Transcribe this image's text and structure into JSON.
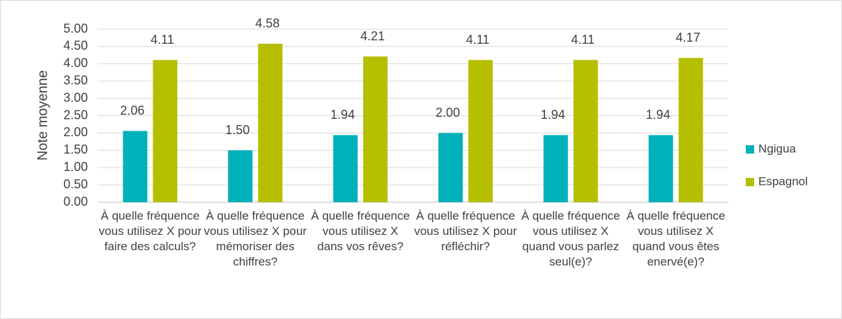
{
  "chart_data": {
    "type": "bar",
    "y_label": "Note moyenne",
    "categories": [
      "À quelle fréquence vous utilisez X pour faire des calculs?",
      "À quelle fréquence vous utilisez X pour mémoriser des chiffres?",
      "À quelle fréquence vous utilisez X dans vos rêves?",
      "À quelle fréquence vous utilisez X pour réfléchir?",
      "À quelle fréquence vous utilisez X quand vous parlez seul(e)?",
      "À quelle fréquence vous utilisez X quand vous êtes enervé(e)?"
    ],
    "series": [
      {
        "name": "Ngigua",
        "color": "#00b1ba",
        "values": [
          2.06,
          1.5,
          1.94,
          2,
          1.94,
          1.94
        ],
        "value_labels": [
          "2.06",
          "1.50",
          "1.94",
          "2.00",
          "1.94",
          "1.94"
        ]
      },
      {
        "name": "Espagnol",
        "color": "#b5bf00",
        "values": [
          4.11,
          4.58,
          4.21,
          4.11,
          4.11,
          4.17
        ],
        "value_labels": [
          "4.11",
          "4.58",
          "4.21",
          "4.11",
          "4.11",
          "4.17"
        ]
      }
    ],
    "ylim": [
      0,
      5
    ],
    "yticks": [
      {
        "value": 0,
        "label": "0.00"
      },
      {
        "value": 0.5,
        "label": "0.50"
      },
      {
        "value": 1,
        "label": "1.00"
      },
      {
        "value": 1.5,
        "label": "1.50"
      },
      {
        "value": 2,
        "label": "2.00"
      },
      {
        "value": 2.5,
        "label": "2.50"
      },
      {
        "value": 3,
        "label": "3.00"
      },
      {
        "value": 3.5,
        "label": "3.50"
      },
      {
        "value": 4,
        "label": "4.00"
      },
      {
        "value": 4.5,
        "label": "4.50"
      },
      {
        "value": 5,
        "label": "5.00"
      }
    ],
    "grid": true,
    "legend": "right"
  }
}
